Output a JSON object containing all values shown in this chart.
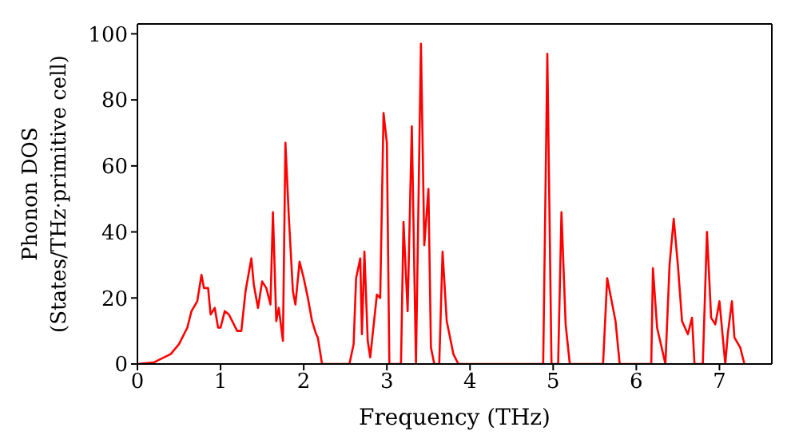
{
  "chart_data": {
    "type": "line",
    "xlabel": "Frequency (THz)",
    "ylabel": "Phonon DOS\n(States/THz·primitive cell)",
    "xlim": [
      0,
      7.63
    ],
    "xticks": [
      0,
      1,
      2,
      3,
      4,
      5,
      6,
      7
    ],
    "ylim": [
      0,
      103
    ],
    "yticks": [
      0,
      20,
      40,
      60,
      80,
      100
    ],
    "grid": false,
    "legend": false,
    "marker": "none",
    "line_style": "solid",
    "series": [
      {
        "color": "#ff0000",
        "x": [
          0,
          0.2,
          0.4,
          0.5,
          0.6,
          0.65,
          0.72,
          0.77,
          0.8,
          0.85,
          0.88,
          0.93,
          0.97,
          1.0,
          1.05,
          1.1,
          1.2,
          1.25,
          1.3,
          1.37,
          1.4,
          1.45,
          1.5,
          1.55,
          1.6,
          1.63,
          1.67,
          1.7,
          1.75,
          1.78,
          1.82,
          1.87,
          1.9,
          1.95,
          2.0,
          2.05,
          2.1,
          2.15,
          2.17,
          2.22,
          2.55,
          2.6,
          2.63,
          2.68,
          2.7,
          2.73,
          2.77,
          2.8,
          2.88,
          2.92,
          2.96,
          3.0,
          3.03,
          3.17,
          3.2,
          3.25,
          3.3,
          3.35,
          3.41,
          3.45,
          3.5,
          3.53,
          3.57,
          3.63,
          3.67,
          3.72,
          3.8,
          3.86,
          4.88,
          4.93,
          4.98,
          5.06,
          5.1,
          5.15,
          5.2,
          5.6,
          5.65,
          5.75,
          5.8,
          6.18,
          6.2,
          6.25,
          6.35,
          6.4,
          6.45,
          6.5,
          6.55,
          6.62,
          6.67,
          6.7,
          6.8,
          6.85,
          6.9,
          6.95,
          7.0,
          7.07,
          7.1,
          7.15,
          7.18,
          7.25,
          7.3
        ],
        "values": [
          0,
          0.5,
          3,
          6,
          11,
          16,
          19,
          27,
          23,
          23,
          15,
          17,
          11,
          11,
          16,
          15,
          10,
          10,
          22,
          32,
          24,
          17,
          25,
          23,
          18,
          46,
          13,
          17,
          7,
          67,
          45,
          22,
          18,
          31,
          26,
          20,
          13,
          9,
          8,
          0,
          0,
          6,
          26,
          32,
          9,
          34,
          7,
          2,
          21,
          20,
          76,
          67,
          0,
          0,
          43,
          16,
          72,
          0,
          97,
          36,
          53,
          5,
          0,
          0,
          34,
          13,
          3,
          0,
          0,
          94,
          0,
          0,
          46,
          12,
          0,
          0,
          26,
          13,
          0,
          0,
          29,
          11,
          0,
          30,
          44,
          30,
          13,
          9,
          14,
          0,
          0,
          40,
          14,
          12,
          19,
          0,
          9,
          19,
          8,
          5,
          0
        ]
      }
    ]
  }
}
